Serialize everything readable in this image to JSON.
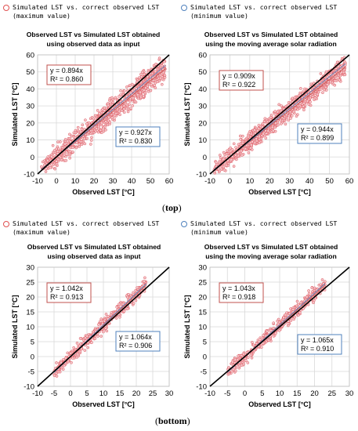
{
  "top": {
    "left": {
      "legend": [
        "Simulated LST vs. correct observed LST",
        "(maximum value)"
      ],
      "title": [
        "Observed LST vs Simulated LST obtained",
        "using observed data as input"
      ]
    },
    "right": {
      "legend": [
        "Simulated LST vs. correct observed LST",
        "(minimum value)"
      ],
      "title": [
        "Observed LST vs Simulated LST obtained",
        "using the moving average solar radiation"
      ]
    },
    "label": "top"
  },
  "bottom": {
    "left": {
      "legend": [
        "Simulated LST vs. correct observed LST",
        "(maximum value)"
      ],
      "title": [
        "Observed LST vs Simulated LST obtained",
        "using observed data as input"
      ]
    },
    "right": {
      "legend": [
        "Simulated LST vs. correct observed LST",
        "(minimum value)"
      ],
      "title": [
        "Observed LST vs Simulated LST obtained",
        "using the moving average solar radiation"
      ]
    },
    "label": "bottom"
  },
  "colors": {
    "points": "#e0555f",
    "points_fill": "#f3c9cc",
    "max_box": "#c0504d",
    "min_box": "#4f81bd",
    "identity_line": "#000000",
    "grid": "#d9d9d9"
  },
  "chart_data": [
    {
      "type": "scatter",
      "panel": "top-left",
      "xlabel": "Observed LST [°C]",
      "ylabel": "Simulated LST [°C]",
      "xlim": [
        -10,
        60
      ],
      "ylim": [
        -10,
        60
      ],
      "xticks": [
        -10,
        0,
        10,
        20,
        30,
        40,
        50,
        60
      ],
      "yticks": [
        -10,
        0,
        10,
        20,
        30,
        40,
        50,
        60
      ],
      "cloud": {
        "x_min": -8,
        "x_max": 58,
        "spread": 5
      },
      "series": [
        {
          "label": [
            "y = 0.894x",
            "R² = 0.860"
          ],
          "slope": 0.894,
          "style": "max"
        },
        {
          "label": [
            "y = 0.927x",
            "R² = 0.830"
          ],
          "slope": 0.927,
          "style": "min"
        }
      ],
      "identity_line": true,
      "grid": true
    },
    {
      "type": "scatter",
      "panel": "top-right",
      "xlabel": "Observed LST [°C]",
      "ylabel": "Simulated LST [°C]",
      "xlim": [
        -10,
        60
      ],
      "ylim": [
        -10,
        60
      ],
      "xticks": [
        -10,
        0,
        10,
        20,
        30,
        40,
        50,
        60
      ],
      "yticks": [
        -10,
        0,
        10,
        20,
        30,
        40,
        50,
        60
      ],
      "cloud": {
        "x_min": -8,
        "x_max": 58,
        "spread": 4
      },
      "series": [
        {
          "label": [
            "y = 0.909x",
            "R² = 0.922"
          ],
          "slope": 0.909,
          "style": "max"
        },
        {
          "label": [
            "y = 0.944x",
            "R² = 0.899"
          ],
          "slope": 0.944,
          "style": "min"
        }
      ],
      "identity_line": true,
      "grid": true
    },
    {
      "type": "scatter",
      "panel": "bottom-left",
      "xlabel": "Observed LST [°C]",
      "ylabel": "Simulated LST [°C]",
      "xlim": [
        -10,
        30
      ],
      "ylim": [
        -10,
        30
      ],
      "xticks": [
        -10,
        -5,
        0,
        5,
        10,
        15,
        20,
        25,
        30
      ],
      "yticks": [
        -10,
        -5,
        0,
        5,
        10,
        15,
        20,
        25,
        30
      ],
      "cloud": {
        "x_min": -5,
        "x_max": 23,
        "spread": 1.6
      },
      "series": [
        {
          "label": [
            "y = 1.042x",
            "R² = 0.913"
          ],
          "slope": 1.042,
          "style": "max"
        },
        {
          "label": [
            "y = 1.064x",
            "R² = 0.906"
          ],
          "slope": 1.064,
          "style": "min"
        }
      ],
      "identity_line": true,
      "grid": true
    },
    {
      "type": "scatter",
      "panel": "bottom-right",
      "xlabel": "Observed LST [°C]",
      "ylabel": "Simulated LST [°C]",
      "xlim": [
        -10,
        30
      ],
      "ylim": [
        -10,
        30
      ],
      "xticks": [
        -10,
        -5,
        0,
        5,
        10,
        15,
        20,
        25,
        30
      ],
      "yticks": [
        -10,
        -5,
        0,
        5,
        10,
        15,
        20,
        25,
        30
      ],
      "cloud": {
        "x_min": -5,
        "x_max": 23,
        "spread": 1.6
      },
      "series": [
        {
          "label": [
            "y = 1.043x",
            "R² = 0.918"
          ],
          "slope": 1.043,
          "style": "max"
        },
        {
          "label": [
            "y = 1.065x",
            "R² = 0.910"
          ],
          "slope": 1.065,
          "style": "min"
        }
      ],
      "identity_line": true,
      "grid": true
    }
  ]
}
